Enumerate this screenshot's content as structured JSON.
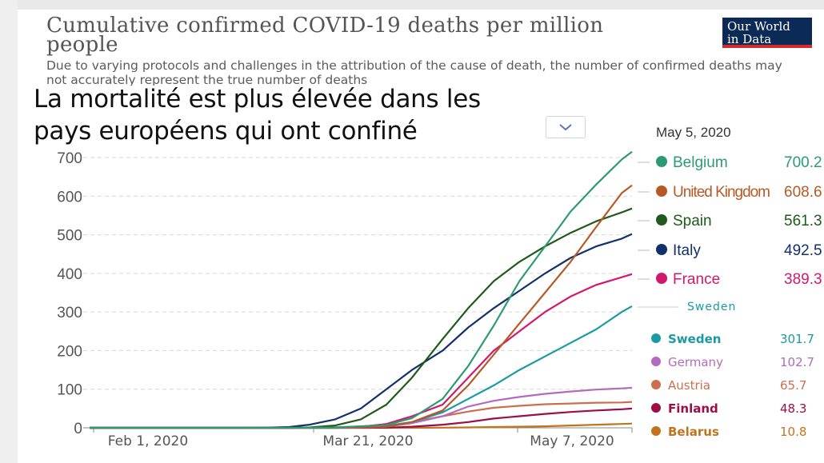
{
  "header": {
    "title": "Cumulative confirmed COVID-19 deaths per million people",
    "subtitle": "Due to varying protocols and challenges in the attribution of the cause of death, the number of confirmed deaths may not accurately represent the true number of deaths",
    "logo_line1": "Our World",
    "logo_line2": "in Data"
  },
  "overlay_text": "La mortalité est plus élevée dans les pays européens qui ont confiné",
  "date_label": "May 5, 2020",
  "sweden_hover_label": "Sweden",
  "icons": {
    "dropdown": "chevron-down-icon"
  },
  "chart_data": {
    "type": "line",
    "x_ticks": [
      "Feb 1, 2020",
      "Mar 21, 2020",
      "May 7, 2020"
    ],
    "y_ticks": [
      0,
      100,
      200,
      300,
      400,
      500,
      600,
      700
    ],
    "ylim": [
      0,
      700
    ],
    "xlim": [
      "2020-01-22",
      "2020-05-07"
    ],
    "grid": true,
    "legend_position": "right",
    "series": [
      {
        "name": "Belgium",
        "value": "700.2",
        "color": "#2e9a73",
        "points": [
          [
            "2020-03-01",
            0
          ],
          [
            "2020-03-10",
            1
          ],
          [
            "2020-03-20",
            7
          ],
          [
            "2020-03-25",
            25
          ],
          [
            "2020-03-31",
            75
          ],
          [
            "2020-04-05",
            160
          ],
          [
            "2020-04-10",
            265
          ],
          [
            "2020-04-15",
            380
          ],
          [
            "2020-04-20",
            470
          ],
          [
            "2020-04-25",
            560
          ],
          [
            "2020-04-30",
            630
          ],
          [
            "2020-05-05",
            695
          ],
          [
            "2020-05-07",
            715
          ]
        ]
      },
      {
        "name": "United Kingdom",
        "value": "608.6",
        "color": "#b55a27",
        "points": [
          [
            "2020-03-01",
            0
          ],
          [
            "2020-03-10",
            0.5
          ],
          [
            "2020-03-20",
            3
          ],
          [
            "2020-03-25",
            15
          ],
          [
            "2020-03-31",
            45
          ],
          [
            "2020-04-05",
            110
          ],
          [
            "2020-04-10",
            190
          ],
          [
            "2020-04-15",
            270
          ],
          [
            "2020-04-20",
            350
          ],
          [
            "2020-04-25",
            430
          ],
          [
            "2020-04-30",
            520
          ],
          [
            "2020-05-05",
            608
          ],
          [
            "2020-05-07",
            628
          ]
        ]
      },
      {
        "name": "Spain",
        "value": "561.3",
        "color": "#1f5a1a",
        "points": [
          [
            "2020-03-01",
            0
          ],
          [
            "2020-03-05",
            1
          ],
          [
            "2020-03-10",
            6
          ],
          [
            "2020-03-15",
            22
          ],
          [
            "2020-03-20",
            60
          ],
          [
            "2020-03-25",
            130
          ],
          [
            "2020-03-31",
            230
          ],
          [
            "2020-04-05",
            310
          ],
          [
            "2020-04-10",
            380
          ],
          [
            "2020-04-15",
            430
          ],
          [
            "2020-04-20",
            470
          ],
          [
            "2020-04-25",
            505
          ],
          [
            "2020-04-30",
            535
          ],
          [
            "2020-05-05",
            558
          ],
          [
            "2020-05-07",
            568
          ]
        ]
      },
      {
        "name": "Italy",
        "value": "492.5",
        "color": "#12306b",
        "points": [
          [
            "2020-02-20",
            0
          ],
          [
            "2020-02-25",
            0.5
          ],
          [
            "2020-03-01",
            2
          ],
          [
            "2020-03-05",
            8
          ],
          [
            "2020-03-10",
            22
          ],
          [
            "2020-03-15",
            50
          ],
          [
            "2020-03-20",
            100
          ],
          [
            "2020-03-25",
            150
          ],
          [
            "2020-03-31",
            200
          ],
          [
            "2020-04-05",
            260
          ],
          [
            "2020-04-10",
            310
          ],
          [
            "2020-04-15",
            355
          ],
          [
            "2020-04-20",
            400
          ],
          [
            "2020-04-25",
            440
          ],
          [
            "2020-04-30",
            470
          ],
          [
            "2020-05-05",
            490
          ],
          [
            "2020-05-07",
            502
          ]
        ]
      },
      {
        "name": "France",
        "value": "389.3",
        "color": "#d2186b",
        "points": [
          [
            "2020-03-01",
            0
          ],
          [
            "2020-03-10",
            1
          ],
          [
            "2020-03-15",
            3
          ],
          [
            "2020-03-20",
            10
          ],
          [
            "2020-03-25",
            30
          ],
          [
            "2020-03-31",
            60
          ],
          [
            "2020-04-05",
            130
          ],
          [
            "2020-04-10",
            200
          ],
          [
            "2020-04-15",
            250
          ],
          [
            "2020-04-20",
            300
          ],
          [
            "2020-04-25",
            340
          ],
          [
            "2020-04-30",
            370
          ],
          [
            "2020-05-05",
            390
          ],
          [
            "2020-05-07",
            398
          ]
        ]
      },
      {
        "name": "Sweden",
        "value": "301.7",
        "color": "#1a9aa2",
        "points": [
          [
            "2020-03-10",
            0
          ],
          [
            "2020-03-20",
            5
          ],
          [
            "2020-03-25",
            15
          ],
          [
            "2020-03-31",
            40
          ],
          [
            "2020-04-05",
            75
          ],
          [
            "2020-04-10",
            110
          ],
          [
            "2020-04-15",
            150
          ],
          [
            "2020-04-20",
            185
          ],
          [
            "2020-04-25",
            220
          ],
          [
            "2020-04-30",
            255
          ],
          [
            "2020-05-05",
            300
          ],
          [
            "2020-05-07",
            315
          ]
        ]
      },
      {
        "name": "Germany",
        "value": "102.7",
        "color": "#b36bbd",
        "points": [
          [
            "2020-03-10",
            0
          ],
          [
            "2020-03-15",
            1
          ],
          [
            "2020-03-20",
            3
          ],
          [
            "2020-03-25",
            12
          ],
          [
            "2020-03-31",
            30
          ],
          [
            "2020-04-05",
            55
          ],
          [
            "2020-04-10",
            70
          ],
          [
            "2020-04-15",
            80
          ],
          [
            "2020-04-20",
            88
          ],
          [
            "2020-04-25",
            94
          ],
          [
            "2020-04-30",
            99
          ],
          [
            "2020-05-05",
            102
          ],
          [
            "2020-05-07",
            104
          ]
        ]
      },
      {
        "name": "Austria",
        "value": "65.7",
        "color": "#cd6e4e",
        "points": [
          [
            "2020-03-10",
            0
          ],
          [
            "2020-03-15",
            1
          ],
          [
            "2020-03-20",
            5
          ],
          [
            "2020-03-25",
            15
          ],
          [
            "2020-03-31",
            30
          ],
          [
            "2020-04-05",
            42
          ],
          [
            "2020-04-10",
            52
          ],
          [
            "2020-04-15",
            57
          ],
          [
            "2020-04-20",
            61
          ],
          [
            "2020-04-25",
            63
          ],
          [
            "2020-04-30",
            65
          ],
          [
            "2020-05-05",
            65.7
          ],
          [
            "2020-05-07",
            67
          ]
        ]
      },
      {
        "name": "Finland",
        "value": "48.3",
        "color": "#9c0e45",
        "points": [
          [
            "2020-03-15",
            0
          ],
          [
            "2020-03-20",
            0.5
          ],
          [
            "2020-03-25",
            3
          ],
          [
            "2020-03-31",
            8
          ],
          [
            "2020-04-05",
            15
          ],
          [
            "2020-04-10",
            24
          ],
          [
            "2020-04-15",
            30
          ],
          [
            "2020-04-20",
            36
          ],
          [
            "2020-04-25",
            41
          ],
          [
            "2020-04-30",
            45
          ],
          [
            "2020-05-05",
            48
          ],
          [
            "2020-05-07",
            50
          ]
        ]
      },
      {
        "name": "Belarus",
        "value": "10.8",
        "color": "#c2731e",
        "points": [
          [
            "2020-03-25",
            0
          ],
          [
            "2020-03-31",
            0.5
          ],
          [
            "2020-04-05",
            1
          ],
          [
            "2020-04-10",
            2
          ],
          [
            "2020-04-15",
            3
          ],
          [
            "2020-04-20",
            4
          ],
          [
            "2020-04-25",
            6
          ],
          [
            "2020-04-30",
            8
          ],
          [
            "2020-05-05",
            10
          ],
          [
            "2020-05-07",
            11
          ]
        ]
      }
    ]
  }
}
